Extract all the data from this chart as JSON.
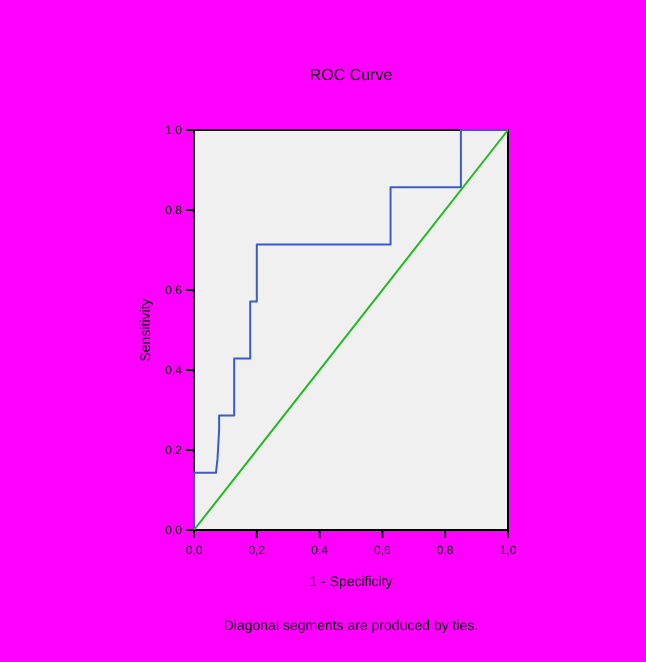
{
  "chart_data": {
    "type": "line",
    "title": "ROC Curve",
    "xlabel": "1 - Specificity",
    "ylabel": "Sensitivity",
    "annotations": [
      "Diagonal segments are produced by ties."
    ],
    "series": [
      {
        "color": "#3b5bc8",
        "x": [
          0,
          0,
          0.07,
          0.075,
          0.08,
          0.08,
          0.128,
          0.128,
          0.179,
          0.179,
          0.2,
          0.2,
          0.626,
          0.626,
          0.85,
          0.85,
          1
        ],
        "values": [
          0,
          0.143,
          0.143,
          0.179,
          0.25,
          0.286,
          0.286,
          0.429,
          0.429,
          0.571,
          0.571,
          0.714,
          0.714,
          0.857,
          0.857,
          1,
          1
        ]
      },
      {
        "color": "#22b822",
        "x": [
          0,
          1
        ],
        "values": [
          0,
          1
        ]
      }
    ],
    "xlim": [
      0,
      1
    ],
    "ylim": [
      0,
      1
    ],
    "xticks": [
      {
        "value": 0,
        "label": "0,0"
      },
      {
        "value": 0.2,
        "label": "0,2"
      },
      {
        "value": 0.4,
        "label": "0,4"
      },
      {
        "value": 0.6,
        "label": "0,6"
      },
      {
        "value": 0.8,
        "label": "0,8"
      },
      {
        "value": 1,
        "label": "1,0"
      }
    ],
    "yticks": [
      {
        "value": 0,
        "label": "0,0"
      },
      {
        "value": 0.2,
        "label": "0,2"
      },
      {
        "value": 0.4,
        "label": "0,4"
      },
      {
        "value": 0.6,
        "label": "0,6"
      },
      {
        "value": 0.8,
        "label": "0,8"
      },
      {
        "value": 1,
        "label": "1,0"
      }
    ],
    "grid": false,
    "marker": "none",
    "line_style": "solid"
  }
}
